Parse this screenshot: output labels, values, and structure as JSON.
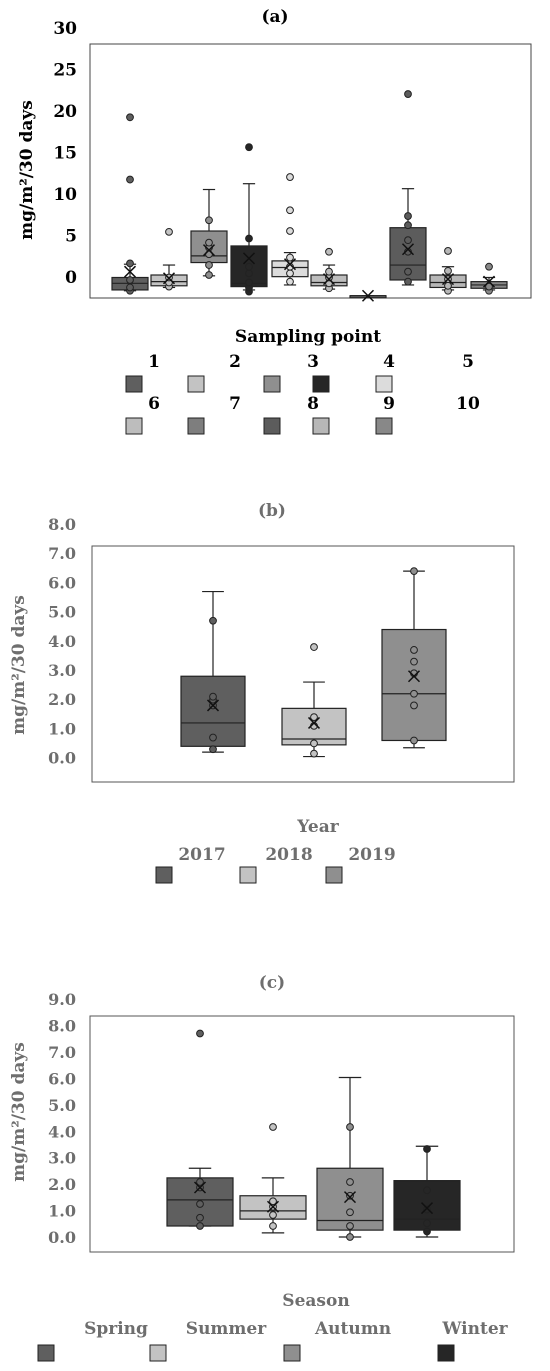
{
  "chart_data": [
    {
      "panel": "(a)",
      "type": "box",
      "title": "(a)",
      "ylabel": "mg/m²/30 days",
      "ylim": [
        -2,
        30
      ],
      "yticks": [
        "30",
        "25",
        "20",
        "15",
        "10",
        "5",
        "0"
      ],
      "legend_title": "Sampling point",
      "categories": [
        "1",
        "2",
        "3",
        "4",
        "5",
        "6",
        "7",
        "8",
        "9",
        "10"
      ],
      "colors": [
        "#5f5f5f",
        "#c3c3c3",
        "#8f8f8f",
        "#262626",
        "#dcdcdc",
        "#bdbdbd",
        "#7e7e7e",
        "#5c5c5c",
        "#b7b7b7",
        "#888888"
      ],
      "series": [
        {
          "min": -1.9,
          "q1": -1.8,
          "median": -1.0,
          "q3": -0.3,
          "max": 1.3,
          "mean": 0.4,
          "points": [
            -1.9,
            -1.5,
            -0.6,
            1.4,
            11.5,
            19.0
          ]
        },
        {
          "min": -1.5,
          "q1": -1.3,
          "median": -0.8,
          "q3": 0.0,
          "max": 1.2,
          "mean": -0.4,
          "points": [
            -1.4,
            -0.9,
            -0.3,
            5.2
          ]
        },
        {
          "min": -0.1,
          "q1": 1.5,
          "median": 2.3,
          "q3": 5.3,
          "max": 10.3,
          "mean": 3.0,
          "points": [
            0.0,
            1.2,
            2.5,
            3.3,
            3.9,
            6.6
          ]
        },
        {
          "min": -1.8,
          "q1": -1.4,
          "median": -1.0,
          "q3": 3.5,
          "max": 11.0,
          "mean": 2.0,
          "points": [
            -2.0,
            -1.5,
            -0.9,
            0.2,
            1.0,
            4.4,
            15.4
          ]
        },
        {
          "min": -1.2,
          "q1": -0.2,
          "median": 0.9,
          "q3": 1.7,
          "max": 2.7,
          "mean": 1.3,
          "points": [
            -0.8,
            0.2,
            1.0,
            2.1,
            5.3,
            7.8,
            11.8
          ]
        },
        {
          "min": -1.7,
          "q1": -1.3,
          "median": -0.9,
          "q3": 0.0,
          "max": 1.2,
          "mean": -0.5,
          "points": [
            -1.6,
            -1.0,
            -0.3,
            0.4,
            2.8
          ]
        },
        {
          "min": -2.5,
          "q1": -2.5,
          "median": -2.5,
          "q3": -2.5,
          "max": -2.5,
          "mean": -2.5,
          "points": []
        },
        {
          "min": -1.2,
          "q1": -0.6,
          "median": 1.2,
          "q3": 5.7,
          "max": 10.4,
          "mean": 3.1,
          "points": [
            -0.8,
            0.4,
            2.8,
            4.2,
            6.0,
            7.1,
            21.8
          ]
        },
        {
          "min": -1.8,
          "q1": -1.5,
          "median": -0.9,
          "q3": 0.0,
          "max": 1.0,
          "mean": -0.5,
          "points": [
            -1.9,
            -1.3,
            -0.5,
            0.5,
            2.9
          ]
        },
        {
          "min": -1.8,
          "q1": -1.6,
          "median": -1.2,
          "q3": -0.8,
          "max": -0.3,
          "mean": -0.8,
          "points": [
            -1.9,
            -1.4,
            1.0
          ]
        }
      ]
    },
    {
      "panel": "(b)",
      "type": "box",
      "title": "(b)",
      "ylabel": "mg/m²/30 days",
      "ylim": [
        0,
        8
      ],
      "yticks": [
        "8.0",
        "7.0",
        "6.0",
        "5.0",
        "4.0",
        "3.0",
        "2.0",
        "1.0",
        "0.0"
      ],
      "legend_title": "Year",
      "categories": [
        "2017",
        "2018",
        "2019"
      ],
      "colors": [
        "#5f5f5f",
        "#c3c3c3",
        "#8f8f8f"
      ],
      "series": [
        {
          "min": 0.2,
          "q1": 0.4,
          "median": 1.2,
          "q3": 2.8,
          "max": 5.7,
          "mean": 1.8,
          "points": [
            0.3,
            0.7,
            1.8,
            2.0,
            2.1,
            4.7
          ]
        },
        {
          "min": 0.05,
          "q1": 0.45,
          "median": 0.65,
          "q3": 1.7,
          "max": 2.6,
          "mean": 1.2,
          "points": [
            0.15,
            0.5,
            1.1,
            1.4,
            3.8
          ]
        },
        {
          "min": 0.35,
          "q1": 0.6,
          "median": 2.2,
          "q3": 4.4,
          "max": 6.4,
          "mean": 2.8,
          "points": [
            0.6,
            1.8,
            2.2,
            2.9,
            3.3,
            3.7,
            6.4
          ]
        }
      ]
    },
    {
      "panel": "(c)",
      "type": "box",
      "title": "(c)",
      "ylabel": "mg/m²/30 days",
      "ylim": [
        0,
        9
      ],
      "yticks": [
        "9.0",
        "8.0",
        "7.0",
        "6.0",
        "5.0",
        "4.0",
        "3.0",
        "2.0",
        "1.0",
        "0.0"
      ],
      "legend_title": "Season",
      "categories": [
        "Spring",
        "Summer",
        "Autumn",
        "Winter"
      ],
      "colors": [
        "#5f5f5f",
        "#c3c3c3",
        "#8f8f8f",
        "#262626"
      ],
      "series": [
        {
          "min": 0.4,
          "q1": 0.4,
          "median": 1.35,
          "q3": 2.15,
          "max": 2.5,
          "mean": 1.8,
          "points": [
            0.4,
            0.7,
            1.2,
            1.8,
            2.0,
            7.4
          ]
        },
        {
          "min": 0.15,
          "q1": 0.65,
          "median": 0.95,
          "q3": 1.5,
          "max": 2.15,
          "mean": 1.1,
          "points": [
            0.4,
            0.8,
            1.1,
            1.3,
            4.0
          ]
        },
        {
          "min": 0.0,
          "q1": 0.25,
          "median": 0.6,
          "q3": 2.5,
          "max": 5.8,
          "mean": 1.45,
          "points": [
            0.0,
            0.4,
            0.9,
            1.5,
            2.0,
            4.0
          ]
        },
        {
          "min": 0.0,
          "q1": 0.25,
          "median": 0.65,
          "q3": 2.05,
          "max": 3.3,
          "mean": 1.05,
          "points": [
            0.2,
            0.5,
            1.0,
            1.7,
            3.2
          ]
        }
      ]
    }
  ]
}
